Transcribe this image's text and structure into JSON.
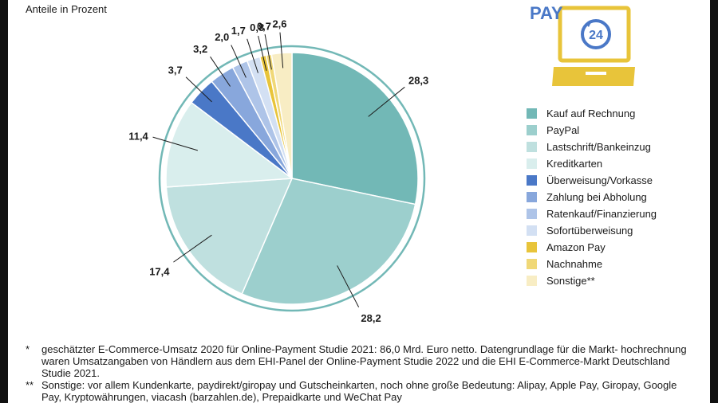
{
  "chart_data": {
    "type": "pie",
    "subtitle": "Anteile in Prozent",
    "slices": [
      {
        "name": "Kauf auf Rechnung",
        "value": 28.3,
        "label": "28,3",
        "color": "#72b8b6"
      },
      {
        "name": "PayPal",
        "value": 28.2,
        "label": "28,2",
        "color": "#9ccfcd"
      },
      {
        "name": "Lastschrift/Bankeinzug",
        "value": 17.4,
        "label": "17,4",
        "color": "#bfe0df"
      },
      {
        "name": "Kreditkarten",
        "value": 11.4,
        "label": "11,4",
        "color": "#d9eeed"
      },
      {
        "name": "Überweisung/Vorkasse",
        "value": 3.7,
        "label": "3,7",
        "color": "#4a78c7"
      },
      {
        "name": "Zahlung bei Abholung",
        "value": 3.2,
        "label": "3,2",
        "color": "#88a7dc"
      },
      {
        "name": "Ratenkauf/Finanzierung",
        "value": 2.0,
        "label": "2,0",
        "color": "#aec4e8"
      },
      {
        "name": "Sofortüberweisung",
        "value": 1.7,
        "label": "1,7",
        "color": "#d3e0f3"
      },
      {
        "name": "Amazon Pay",
        "value": 0.8,
        "label": "0,8",
        "color": "#e8c43a"
      },
      {
        "name": "Nachnahme",
        "value": 0.7,
        "label": "0,7",
        "color": "#f0d877"
      },
      {
        "name": "Sonstige**",
        "value": 2.6,
        "label": "2,6",
        "color": "#f8edc4"
      }
    ],
    "legend_position": "right"
  },
  "logo": {
    "text": "PAY",
    "badge": "24",
    "color": "#e8c43a",
    "accent": "#4a78c7"
  },
  "footnotes": [
    {
      "mark": "*",
      "text": "geschätzter E-Commerce-Umsatz 2020 für Online-Payment Studie 2021: 86,0 Mrd. Euro netto. Datengrundlage für die Markt- hochrechnung waren Umsatzangaben von Händlern aus dem EHI-Panel der Online-Payment Studie 2022 und die EHI E-Commerce-Markt Deutschland Studie 2021."
    },
    {
      "mark": "**",
      "text": "Sonstige: vor allem Kundenkarte, paydirekt/giropay und Gutscheinkarten, noch ohne große Bedeutung: Alipay, Apple Pay, Giropay, Google Pay, Kryptowährungen, viacash (barzahlen.de), Prepaidkarte und WeChat Pay"
    }
  ]
}
